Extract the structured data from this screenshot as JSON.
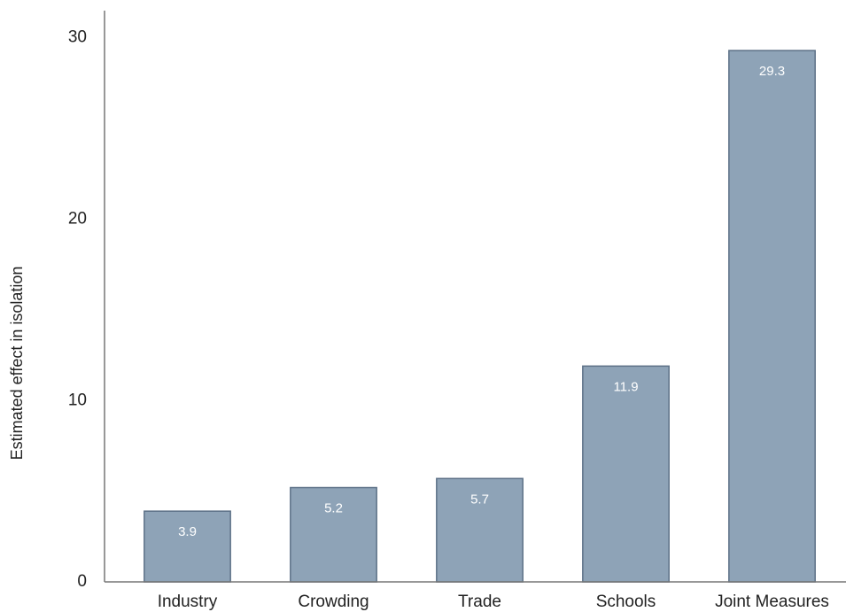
{
  "chart_data": {
    "type": "bar",
    "y_label": "Estimated effect in isolation",
    "categories": [
      "Industry",
      "Crowding",
      "Trade",
      "Schools",
      "Joint Measures"
    ],
    "values": [
      3.9,
      5.2,
      5.7,
      11.9,
      29.3
    ],
    "color": "#8ea3b7",
    "ylim": [
      0,
      31.5
    ],
    "yticks": [
      0,
      10,
      20,
      30
    ],
    "grid": false
  }
}
